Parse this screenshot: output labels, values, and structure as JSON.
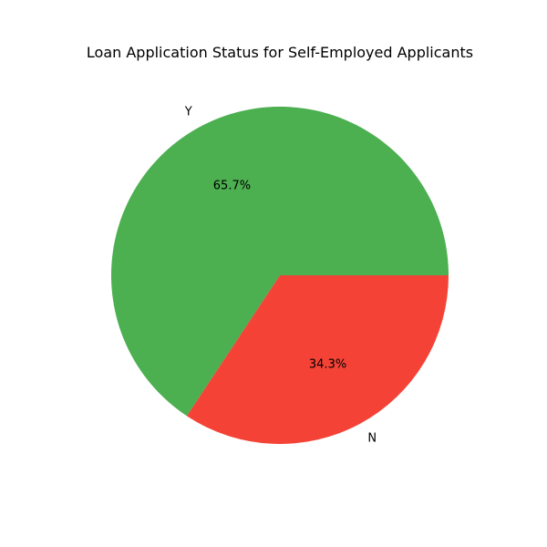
{
  "chart_data": {
    "type": "pie",
    "title": "Loan Application Status for Self-Employed Applicants",
    "labels": [
      "Y",
      "N"
    ],
    "values": [
      65.7,
      34.3
    ],
    "percent_labels": [
      "65.7%",
      "34.3%"
    ],
    "colors": [
      "#4caf50",
      "#f44336"
    ],
    "start_angle_deg": 0,
    "direction": "counterclockwise",
    "legend": "none"
  }
}
